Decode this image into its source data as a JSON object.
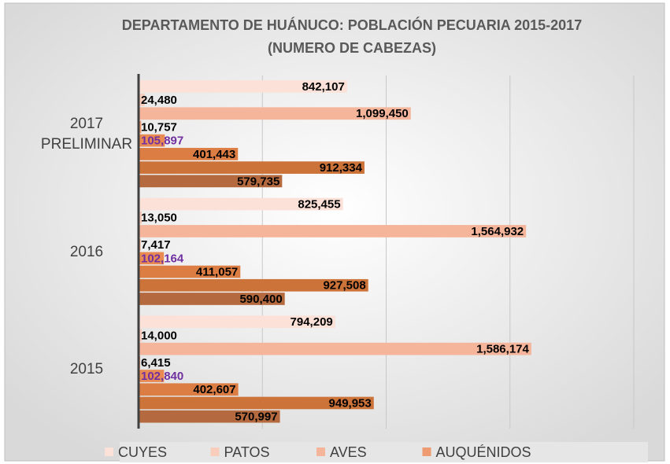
{
  "chart_data": {
    "type": "barh",
    "title": "DEPARTAMENTO DE HUÁNUCO: POBLACIÓN PECUARIA 2015-2017",
    "subtitle": "(NUMERO DE CABEZAS)",
    "categories": [
      "2017 PRELIMINAR",
      "2016",
      "2015"
    ],
    "xlim": [
      0,
      2000000
    ],
    "xticks": [
      0,
      500000,
      1000000,
      1500000,
      2000000
    ],
    "grid": true,
    "legend": "bottom",
    "series": [
      {
        "name": "CUYES",
        "color": "#fbe1d7",
        "label_color": "#000000",
        "values": [
          842107,
          825455,
          794209
        ],
        "value_labels": [
          "842,107",
          "825,455",
          "794,209"
        ]
      },
      {
        "name": "PATOS",
        "color": "#f8cdbb",
        "label_color": "#000000",
        "values": [
          24480,
          13050,
          14000
        ],
        "value_labels": [
          "24,480",
          "13,050",
          "14,000"
        ]
      },
      {
        "name": "AVES",
        "color": "#f4b59b",
        "label_color": "#000000",
        "values": [
          1099450,
          1564932,
          1586174
        ],
        "value_labels": [
          "1,099,450",
          "1,564,932",
          "1,586,174"
        ]
      },
      {
        "name": "AUQUÉNIDOS",
        "color": "#ee9b72",
        "label_color": "#000000",
        "values": [
          10757,
          7417,
          6415
        ],
        "value_labels": [
          "10,757",
          "7,417",
          "6,415"
        ]
      },
      {
        "color": "#e88a52",
        "label_color": "#7030a0",
        "values": [
          105897,
          102164,
          102840
        ],
        "value_labels": [
          "105,897",
          "102,164",
          "102,840"
        ]
      },
      {
        "color": "#dc7e43",
        "label_color": "#000000",
        "values": [
          401443,
          411057,
          402607
        ],
        "value_labels": [
          "401,443",
          "411,057",
          "402,607"
        ]
      },
      {
        "color": "#cc7339",
        "label_color": "#000000",
        "values": [
          912334,
          927508,
          949953
        ],
        "value_labels": [
          "912,334",
          "927,508",
          "949,953"
        ]
      },
      {
        "color": "#b46a3e",
        "label_color": "#000000",
        "values": [
          579735,
          590400,
          570997
        ],
        "value_labels": [
          "579,735",
          "590,400",
          "570,997"
        ]
      }
    ]
  }
}
